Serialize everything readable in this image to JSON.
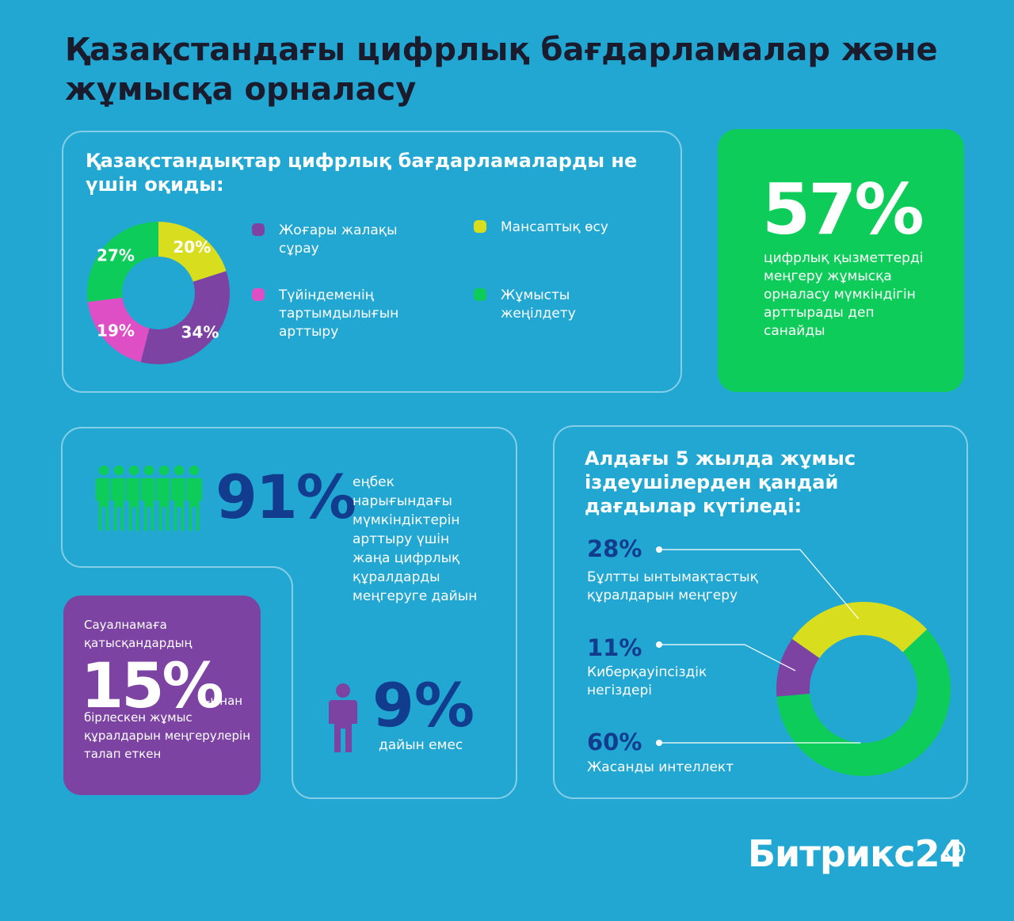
{
  "title": "Қазақстандағы цифрлық бағдарламалар және жұмысқа орналасу",
  "panel1": {
    "title": "Қазақстандықтар цифрлық бағдарламаларды не үшін оқиды:"
  },
  "green_card": {
    "value": "57%",
    "text": "цифрлық қызметтерді меңгеру жұмысқа орналасу мүмкіндігін арттырады деп санайды"
  },
  "stat91": {
    "value": "91%",
    "text": "еңбек нарығындағы мүмкіндіктерін арттыру үшін жаңа цифрлық құралдарды меңгеруге дайын"
  },
  "stat9": {
    "value": "9%",
    "text": "дайын емес"
  },
  "purple_card": {
    "top": "Сауалнамаға қатысқандардың",
    "value": "15%",
    "suffix": "-ынан",
    "bottom": "бірлескен жұмыс құралдарын меңгерулерін талап еткен"
  },
  "panel3": {
    "title": "Алдағы 5 жылда жұмыс іздеушілерден қандай дағдылар күтіледі:"
  },
  "brand": "Битрикс24",
  "colors": {
    "background": "#22a7d3",
    "purple": "#7c43a2",
    "yellow": "#d8de1e",
    "pink": "#de4fc6",
    "green": "#0ecc5a",
    "navy": "#123d8e"
  },
  "icons": {
    "crowd": "people-group-icon",
    "person": "person-icon",
    "brand": "clock-icon"
  },
  "chart_data": [
    {
      "type": "pie",
      "donut": true,
      "title": "Қазақстандықтар цифрлық бағдарламаларды не үшін оқиды:",
      "categories": [
        "Жоғары жалақы сұрау",
        "Түйіндеменің тартымдылығын арттыру",
        "Жұмысты жеңілдету",
        "Мансаптық өсу"
      ],
      "values": [
        34,
        19,
        27,
        20
      ],
      "labels": [
        "34%",
        "19%",
        "27%",
        "20%"
      ],
      "colors": [
        "#7c43a2",
        "#de4fc6",
        "#0ecc5a",
        "#d8de1e"
      ],
      "legend": [
        {
          "label": "Жоғары жалақы сұрау",
          "color": "#7c43a2"
        },
        {
          "label": "Мансаптық өсу",
          "color": "#d8de1e"
        },
        {
          "label": "Түйіндеменің тартымдылығын арттыру",
          "color": "#de4fc6"
        },
        {
          "label": "Жұмысты жеңілдету",
          "color": "#0ecc5a"
        }
      ],
      "legend_position": "right"
    },
    {
      "type": "pie",
      "donut": true,
      "title": "Алдағы 5 жылда жұмыс іздеушілерден қандай дағдылар күтіледі:",
      "categories": [
        "Бұлтты ынтымақтастық құралдарын меңгеру",
        "Киберқауіпсіздік негіздері",
        "Жасанды интеллект"
      ],
      "values": [
        28,
        11,
        60
      ],
      "labels": [
        "28%",
        "11%",
        "60%"
      ],
      "colors": [
        "#d8de1e",
        "#7c43a2",
        "#0ecc5a"
      ],
      "legend_position": "left"
    }
  ]
}
